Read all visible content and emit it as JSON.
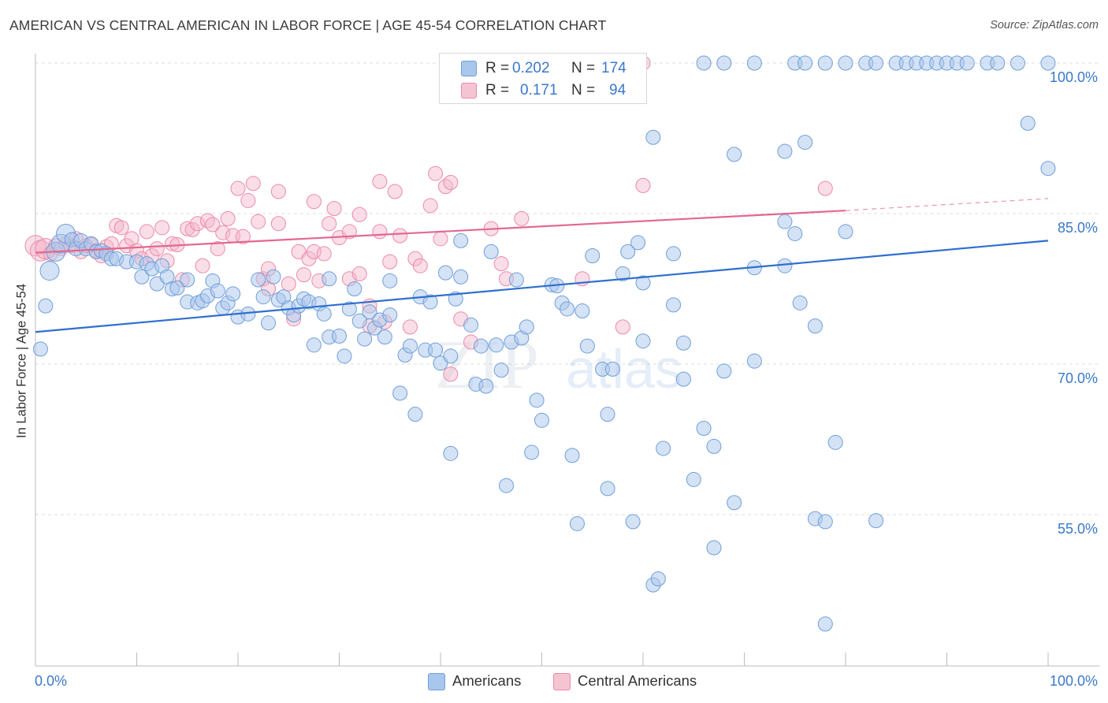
{
  "header": {
    "title": "AMERICAN VS CENTRAL AMERICAN IN LABOR FORCE | AGE 45-54 CORRELATION CHART",
    "source": "Source: ZipAtlas.com"
  },
  "legend": {
    "rows": [
      {
        "r_label": "R =",
        "r_value": "0.202",
        "n_label": "N =",
        "n_value": "174"
      },
      {
        "r_label": "R =",
        "r_value": "0.171",
        "n_label": "N =",
        "n_value": "94"
      }
    ],
    "series": [
      "Americans",
      "Central Americans"
    ]
  },
  "colors": {
    "americans_fill": "#a9c6ec",
    "americans_stroke": "#6f9fd9",
    "americans_line": "#2f6fcf",
    "central_fill": "#f5b6c9",
    "central_stroke": "#ec8aa8",
    "central_line": "#e2688f",
    "tick_label": "#3a78c9",
    "grid": "#dcdcdc"
  },
  "chart_data": {
    "type": "scatter",
    "title": "AMERICAN VS CENTRAL AMERICAN IN LABOR FORCE | AGE 45-54 CORRELATION CHART",
    "xlabel": "",
    "ylabel": "In Labor Force | Age 45-54",
    "xlim": [
      0,
      100
    ],
    "ylim": [
      40,
      102
    ],
    "x_tick_labels": [
      "0.0%",
      "100.0%"
    ],
    "y_tick_labels": [
      "55.0%",
      "70.0%",
      "85.0%",
      "100.0%"
    ],
    "y_ticks": [
      55,
      70,
      85,
      100
    ],
    "grid": true,
    "legend_position": "top-center",
    "watermark": "ZIPatlas",
    "series": [
      {
        "name": "Americans",
        "trend": {
          "x0": 0,
          "y0": 73.2,
          "x1": 100,
          "y1": 82.3
        },
        "points": [
          [
            0.5,
            71.5
          ],
          [
            1,
            75.8
          ],
          [
            1.4,
            79.3
          ],
          [
            2,
            81.2
          ],
          [
            2.5,
            82
          ],
          [
            3,
            83
          ],
          [
            3.6,
            82.4
          ],
          [
            4,
            81.5
          ],
          [
            4.5,
            82.3
          ],
          [
            5,
            81.5
          ],
          [
            5.5,
            82
          ],
          [
            6,
            81.2
          ],
          [
            6.5,
            81.3
          ],
          [
            7,
            81
          ],
          [
            7.5,
            80.5
          ],
          [
            8,
            80.5
          ],
          [
            9,
            80.2
          ],
          [
            10,
            80.2
          ],
          [
            10.5,
            78.7
          ],
          [
            11,
            80
          ],
          [
            11.5,
            79.5
          ],
          [
            12,
            78
          ],
          [
            12.5,
            79.8
          ],
          [
            13,
            78.7
          ],
          [
            13.5,
            77.5
          ],
          [
            14,
            77.6
          ],
          [
            15,
            78.4
          ],
          [
            15,
            76.2
          ],
          [
            16,
            76.1
          ],
          [
            16.5,
            76.3
          ],
          [
            17,
            76.8
          ],
          [
            17.5,
            78.3
          ],
          [
            18,
            77.3
          ],
          [
            18.5,
            75.6
          ],
          [
            19,
            76.1
          ],
          [
            19.5,
            77
          ],
          [
            20,
            74.7
          ],
          [
            21,
            75
          ],
          [
            22,
            78.4
          ],
          [
            22.5,
            76.7
          ],
          [
            23,
            74.1
          ],
          [
            23.5,
            78.7
          ],
          [
            24,
            76.4
          ],
          [
            24.5,
            76.7
          ],
          [
            25,
            75.6
          ],
          [
            25.5,
            74.9
          ],
          [
            26,
            75.8
          ],
          [
            26.5,
            76.5
          ],
          [
            27,
            76.2
          ],
          [
            27.5,
            71.9
          ],
          [
            28,
            76
          ],
          [
            28.5,
            75
          ],
          [
            29,
            72.7
          ],
          [
            29,
            78.5
          ],
          [
            30,
            72.8
          ],
          [
            30.5,
            70.8
          ],
          [
            31,
            75.5
          ],
          [
            31.5,
            77.5
          ],
          [
            32,
            74.3
          ],
          [
            32.5,
            72.5
          ],
          [
            33,
            75.2
          ],
          [
            33.5,
            73.6
          ],
          [
            34,
            74.4
          ],
          [
            34.5,
            72.7
          ],
          [
            35,
            78.3
          ],
          [
            35,
            74.9
          ],
          [
            36,
            67.1
          ],
          [
            36.5,
            70.9
          ],
          [
            37,
            71.8
          ],
          [
            37.5,
            65
          ],
          [
            38,
            76.7
          ],
          [
            38.5,
            71.4
          ],
          [
            39,
            76.2
          ],
          [
            39.5,
            71.4
          ],
          [
            40,
            70.1
          ],
          [
            40.5,
            79.1
          ],
          [
            41,
            70.8
          ],
          [
            41.5,
            76.5
          ],
          [
            41,
            61.1
          ],
          [
            42,
            78.7
          ],
          [
            42,
            82.3
          ],
          [
            43,
            73.9
          ],
          [
            43.5,
            68
          ],
          [
            44,
            71.8
          ],
          [
            44.5,
            67.8
          ],
          [
            45,
            81.2
          ],
          [
            45.5,
            71.9
          ],
          [
            46,
            69.4
          ],
          [
            46.5,
            57.9
          ],
          [
            47,
            72.2
          ],
          [
            47.5,
            78.4
          ],
          [
            48,
            72.6
          ],
          [
            48.5,
            73.7
          ],
          [
            49,
            61.2
          ],
          [
            49.5,
            66.4
          ],
          [
            50,
            64.4
          ],
          [
            51,
            77.9
          ],
          [
            51.5,
            77.8
          ],
          [
            52,
            76.1
          ],
          [
            52.5,
            75.5
          ],
          [
            53,
            60.9
          ],
          [
            53.5,
            54.1
          ],
          [
            54,
            75.3
          ],
          [
            54.5,
            71.8
          ],
          [
            55,
            80.8
          ],
          [
            56,
            69.5
          ],
          [
            56.5,
            57.6
          ],
          [
            56.5,
            65
          ],
          [
            57,
            69.5
          ],
          [
            58,
            79
          ],
          [
            58.5,
            81.2
          ],
          [
            59,
            54.3
          ],
          [
            59.5,
            82.1
          ],
          [
            60,
            72.3
          ],
          [
            60,
            78.1
          ],
          [
            61,
            92.6
          ],
          [
            61,
            48
          ],
          [
            61.5,
            48.6
          ],
          [
            62,
            61.6
          ],
          [
            63,
            75.9
          ],
          [
            63,
            81
          ],
          [
            64,
            68.5
          ],
          [
            64,
            72.1
          ],
          [
            65,
            58.5
          ],
          [
            66,
            63.6
          ],
          [
            67,
            61.8
          ],
          [
            67,
            51.7
          ],
          [
            68,
            69.3
          ],
          [
            69,
            56.2
          ],
          [
            69,
            90.9
          ],
          [
            71,
            70.3
          ],
          [
            71,
            79.6
          ],
          [
            74,
            91.2
          ],
          [
            74,
            84.2
          ],
          [
            74,
            79.8
          ],
          [
            75,
            83
          ],
          [
            75.5,
            76.1
          ],
          [
            76,
            92.1
          ],
          [
            77,
            54.6
          ],
          [
            77,
            73.8
          ],
          [
            78,
            54.3
          ],
          [
            78,
            44.1
          ],
          [
            79,
            62.2
          ],
          [
            80,
            83.2
          ],
          [
            83,
            54.4
          ],
          [
            98,
            94
          ],
          [
            100,
            89.5
          ],
          [
            66,
            100
          ],
          [
            68,
            100
          ],
          [
            71,
            100
          ],
          [
            75,
            100
          ],
          [
            76,
            100
          ],
          [
            78,
            100
          ],
          [
            80,
            100
          ],
          [
            82,
            100
          ],
          [
            83,
            100
          ],
          [
            85,
            100
          ],
          [
            86,
            100
          ],
          [
            87,
            100
          ],
          [
            88,
            100
          ],
          [
            89,
            100
          ],
          [
            90,
            100
          ],
          [
            91,
            100
          ],
          [
            92,
            100
          ],
          [
            94,
            100
          ],
          [
            95,
            100
          ],
          [
            97,
            100
          ],
          [
            100,
            100
          ]
        ]
      },
      {
        "name": "Central Americans",
        "trend": {
          "x0": 0,
          "y0": 81.1,
          "x1": 80,
          "y1": 85.3,
          "dash_to_x": 100,
          "dash_to_y": 86.5
        },
        "points": [
          [
            0,
            81.8
          ],
          [
            0.5,
            81.3
          ],
          [
            1,
            81.5
          ],
          [
            1.5,
            81
          ],
          [
            2,
            81.8
          ],
          [
            2.5,
            81.5
          ],
          [
            3,
            82
          ],
          [
            3.5,
            81.8
          ],
          [
            4,
            82.5
          ],
          [
            4.5,
            81.2
          ],
          [
            5,
            81.8
          ],
          [
            5.5,
            81.9
          ],
          [
            6,
            81.3
          ],
          [
            6.5,
            80.8
          ],
          [
            7,
            81.7
          ],
          [
            7.5,
            82
          ],
          [
            8,
            83.8
          ],
          [
            8.5,
            83.6
          ],
          [
            9,
            81.8
          ],
          [
            9.5,
            82.5
          ],
          [
            10,
            81.3
          ],
          [
            10.5,
            80.5
          ],
          [
            11,
            83.2
          ],
          [
            11.5,
            80.8
          ],
          [
            12,
            81.5
          ],
          [
            12.5,
            83.6
          ],
          [
            13,
            80.3
          ],
          [
            13.5,
            82
          ],
          [
            14,
            81.9
          ],
          [
            14.5,
            78.4
          ],
          [
            15,
            83.5
          ],
          [
            15.5,
            83.4
          ],
          [
            16,
            84
          ],
          [
            16.5,
            79.8
          ],
          [
            17,
            84.3
          ],
          [
            17.5,
            83.9
          ],
          [
            18,
            81.5
          ],
          [
            18.5,
            83.1
          ],
          [
            19,
            84.5
          ],
          [
            19.5,
            82.8
          ],
          [
            20,
            87.5
          ],
          [
            20.5,
            82.7
          ],
          [
            21,
            86.3
          ],
          [
            21.5,
            88
          ],
          [
            22,
            84.2
          ],
          [
            22.5,
            78.5
          ],
          [
            23,
            77.5
          ],
          [
            23,
            79.5
          ],
          [
            24,
            87.2
          ],
          [
            24,
            84
          ],
          [
            25,
            78
          ],
          [
            25.5,
            74.5
          ],
          [
            26,
            81.2
          ],
          [
            26.5,
            78.9
          ],
          [
            27,
            80.5
          ],
          [
            27.5,
            81.2
          ],
          [
            27.5,
            86.2
          ],
          [
            28,
            78.3
          ],
          [
            28.5,
            81
          ],
          [
            29,
            84
          ],
          [
            29.5,
            85.5
          ],
          [
            30,
            82.6
          ],
          [
            31,
            83.2
          ],
          [
            31,
            78.5
          ],
          [
            32,
            84.9
          ],
          [
            32,
            79
          ],
          [
            33,
            75.8
          ],
          [
            33,
            73.8
          ],
          [
            34,
            88.2
          ],
          [
            34,
            83.2
          ],
          [
            34.5,
            74.2
          ],
          [
            35,
            80.2
          ],
          [
            35.5,
            87.2
          ],
          [
            36,
            82.8
          ],
          [
            37,
            73.7
          ],
          [
            37.5,
            80.5
          ],
          [
            38,
            79.8
          ],
          [
            39,
            85.8
          ],
          [
            39.5,
            89
          ],
          [
            40,
            82.5
          ],
          [
            40.5,
            87.7
          ],
          [
            41,
            88.1
          ],
          [
            41,
            69
          ],
          [
            42,
            74.5
          ],
          [
            43,
            72.2
          ],
          [
            45,
            83.5
          ],
          [
            46,
            80
          ],
          [
            46.5,
            78.5
          ],
          [
            48,
            84.5
          ],
          [
            54,
            78.5
          ],
          [
            58,
            73.7
          ],
          [
            60,
            87.8
          ],
          [
            78,
            87.5
          ],
          [
            60,
            100
          ]
        ]
      }
    ]
  }
}
